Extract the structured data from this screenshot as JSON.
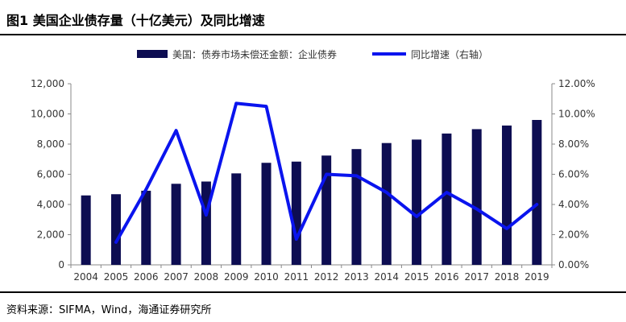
{
  "header": {
    "title": "图1   美国企业债存量（十亿美元）及同比增速"
  },
  "footer": {
    "source": "资料来源：SIFMA，Wind，海通证券研究所"
  },
  "colors": {
    "bar": "#0d0d52",
    "line": "#0a14ee",
    "axis": "#888888",
    "text": "#333333"
  },
  "chart_data": {
    "type": "bar",
    "title": "",
    "xlabel": "",
    "ylabel": "",
    "categories": [
      "2004",
      "2005",
      "2006",
      "2007",
      "2008",
      "2009",
      "2010",
      "2011",
      "2012",
      "2013",
      "2014",
      "2015",
      "2016",
      "2017",
      "2018",
      "2019"
    ],
    "ylim": [
      0,
      12000
    ],
    "y2lim": [
      0,
      0.12
    ],
    "yticks": [
      "0",
      "2,000",
      "4,000",
      "6,000",
      "8,000",
      "10,000",
      "12,000"
    ],
    "y2ticks": [
      "0.00%",
      "2.00%",
      "4.00%",
      "6.00%",
      "8.00%",
      "10.00%",
      "12.00%"
    ],
    "legend_position": "top",
    "grid": false,
    "series": [
      {
        "name": "美国：债券市场未偿还金额：企业债券",
        "type": "bar",
        "axis": "left",
        "values": [
          4600,
          4680,
          4910,
          5370,
          5520,
          6060,
          6760,
          6840,
          7240,
          7670,
          8070,
          8300,
          8700,
          8990,
          9230,
          9600
        ]
      },
      {
        "name": "同比增速（右轴）",
        "type": "line",
        "axis": "right",
        "values": [
          null,
          0.015,
          0.05,
          0.089,
          0.033,
          0.107,
          0.105,
          0.017,
          0.06,
          0.059,
          0.048,
          0.032,
          0.048,
          0.037,
          0.024,
          0.04
        ]
      }
    ]
  }
}
